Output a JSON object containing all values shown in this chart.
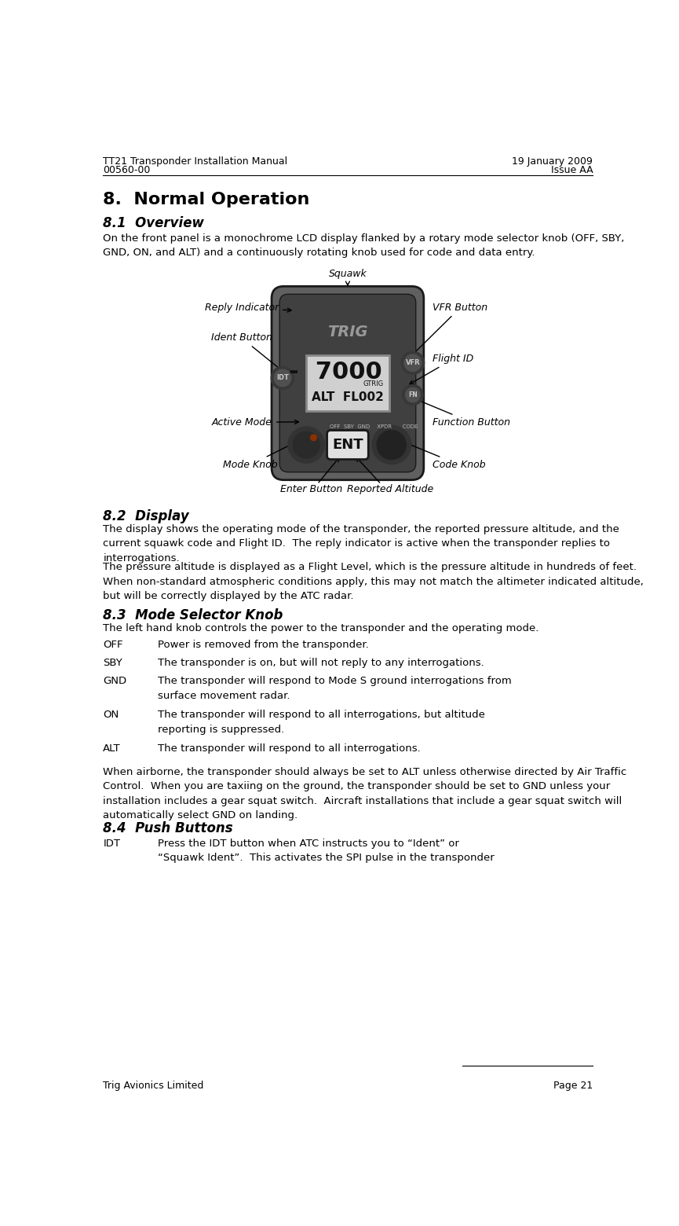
{
  "header_left1": "TT21 Transponder Installation Manual",
  "header_left2": "00560-00",
  "header_right1": "19 January 2009",
  "header_right2": "Issue AA",
  "section_title": "8.  Normal Operation",
  "s81_title": "8.1  Overview",
  "s81_text": "On the front panel is a monochrome LCD display flanked by a rotary mode selector knob (OFF, SBY,\nGND, ON, and ALT) and a continuously rotating knob used for code and data entry.",
  "s82_title": "8.2  Display",
  "s82_p1": "The display shows the operating mode of the transponder, the reported pressure altitude, and the\ncurrent squawk code and Flight ID.  The reply indicator is active when the transponder replies to\ninterrogations.",
  "s82_p2": "The pressure altitude is displayed as a Flight Level, which is the pressure altitude in hundreds of feet.\nWhen non-standard atmospheric conditions apply, this may not match the altimeter indicated altitude,\nbut will be correctly displayed by the ATC radar.",
  "s83_title": "8.3  Mode Selector Knob",
  "s83_intro": "The left hand knob controls the power to the transponder and the operating mode.",
  "s83_items": [
    [
      "OFF",
      "Power is removed from the transponder."
    ],
    [
      "SBY",
      "The transponder is on, but will not reply to any interrogations."
    ],
    [
      "GND",
      "The transponder will respond to Mode S ground interrogations from\nsurface movement radar."
    ],
    [
      "ON",
      "The transponder will respond to all interrogations, but altitude\nreporting is suppressed."
    ],
    [
      "ALT",
      "The transponder will respond to all interrogations."
    ]
  ],
  "s83_para": "When airborne, the transponder should always be set to ALT unless otherwise directed by Air Traffic\nControl.  When you are taxiing on the ground, the transponder should be set to GND unless your\ninstallation includes a gear squat switch.  Aircraft installations that include a gear squat switch will\nautomatically select GND on landing.",
  "s84_title": "8.4  Push Buttons",
  "s84_items": [
    [
      "IDT",
      "Press the IDT button when ATC instructs you to “Ident” or\n“Squawk Ident”.  This activates the SPI pulse in the transponder"
    ]
  ],
  "footer_left": "Trig Avionics Limited",
  "footer_right": "Page 21",
  "diagram_labels": {
    "squawk": "Squawk",
    "reply_indicator": "Reply Indicator",
    "ident_button": "Ident Button",
    "active_mode": "Active Mode",
    "mode_knob": "Mode Knob",
    "enter_button": "Enter Button",
    "reported_altitude": "Reported Altitude",
    "vfr_button": "VFR Button",
    "flight_id": "Flight ID",
    "function_button": "Function Button",
    "code_knob": "Code Knob"
  },
  "bg_color": "#ffffff",
  "text_color": "#000000",
  "device_body_color": "#606060",
  "device_dark_color": "#404040",
  "lcd_bg_color": "#d0d0d0",
  "lcd_text_color": "#111111",
  "button_color": "#505050",
  "knob_color": "#282828",
  "knob_outer_color": "#383838"
}
